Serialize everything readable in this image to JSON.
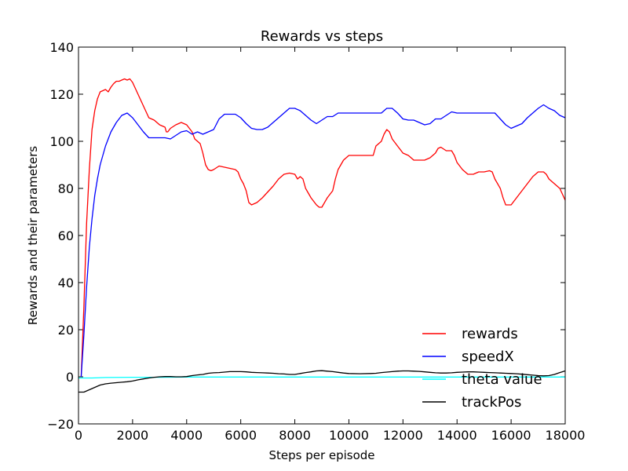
{
  "chart_data": {
    "type": "line",
    "title": "Rewards vs steps",
    "xlabel": "Steps per episode",
    "ylabel": "Rewards and their parameters",
    "xlim": [
      0,
      18000
    ],
    "ylim": [
      -20,
      140
    ],
    "xticks": [
      0,
      2000,
      4000,
      6000,
      8000,
      10000,
      12000,
      14000,
      16000,
      18000
    ],
    "yticks": [
      -20,
      0,
      20,
      40,
      60,
      80,
      100,
      120,
      140
    ],
    "grid": false,
    "legend_position": "lower-right",
    "series": [
      {
        "name": "rewards",
        "color": "#ff0000",
        "x": [
          100,
          200,
          300,
          400,
          500,
          600,
          700,
          800,
          900,
          1000,
          1100,
          1200,
          1300,
          1400,
          1500,
          1600,
          1700,
          1800,
          1900,
          2000,
          2200,
          2400,
          2600,
          2800,
          3000,
          3200,
          3250,
          3300,
          3400,
          3600,
          3800,
          4000,
          4200,
          4300,
          4400,
          4500,
          4600,
          4700,
          4800,
          4900,
          5000,
          5200,
          5400,
          5600,
          5800,
          5900,
          6000,
          6100,
          6200,
          6300,
          6400,
          6600,
          6800,
          7000,
          7200,
          7400,
          7600,
          7800,
          8000,
          8100,
          8200,
          8300,
          8400,
          8600,
          8800,
          8900,
          9000,
          9200,
          9400,
          9500,
          9600,
          9800,
          10000,
          10200,
          10400,
          10600,
          10800,
          10900,
          11000,
          11200,
          11300,
          11400,
          11500,
          11600,
          11800,
          12000,
          12200,
          12300,
          12400,
          12600,
          12800,
          13000,
          13200,
          13300,
          13400,
          13600,
          13800,
          13900,
          14000,
          14200,
          14400,
          14600,
          14800,
          15000,
          15200,
          15300,
          15400,
          15600,
          15700,
          15800,
          16000,
          16200,
          16400,
          16600,
          16800,
          17000,
          17100,
          17200,
          17300,
          17400,
          17600,
          17800,
          18000
        ],
        "y": [
          0,
          30,
          65,
          88,
          105,
          113,
          118,
          121,
          121.5,
          122,
          121,
          123,
          124.5,
          125.5,
          125.5,
          126,
          126.5,
          126,
          126.5,
          125,
          120,
          115,
          110,
          109,
          107,
          106,
          104,
          104,
          105.5,
          107,
          108,
          107,
          104,
          101,
          100,
          99,
          95,
          90,
          88,
          87.5,
          88,
          89.5,
          89,
          88.5,
          88,
          87,
          84,
          82,
          79,
          74,
          73,
          74,
          76,
          78.5,
          81,
          84,
          86,
          86.5,
          86,
          84,
          85,
          84,
          80,
          76,
          73,
          72,
          72,
          76,
          79,
          84,
          88,
          92,
          94,
          94,
          94,
          94,
          94,
          94,
          98,
          100,
          103,
          105,
          104,
          101,
          98,
          95,
          94,
          93,
          92,
          92,
          92,
          93,
          95,
          97,
          97.5,
          96,
          96,
          94,
          91,
          88,
          86,
          86,
          87,
          87,
          87.5,
          87,
          84,
          80,
          76,
          73,
          73,
          76,
          79,
          82,
          85,
          87,
          87,
          87,
          86,
          84,
          82,
          80,
          75
        ]
      },
      {
        "name": "speedX",
        "color": "#0000ff",
        "x": [
          100,
          200,
          300,
          400,
          500,
          600,
          700,
          800,
          1000,
          1200,
          1400,
          1600,
          1800,
          2000,
          2200,
          2400,
          2600,
          2800,
          3000,
          3200,
          3400,
          3600,
          3800,
          4000,
          4200,
          4400,
          4600,
          4800,
          5000,
          5200,
          5400,
          5600,
          5800,
          6000,
          6200,
          6400,
          6600,
          6800,
          7000,
          7200,
          7400,
          7600,
          7800,
          8000,
          8200,
          8400,
          8600,
          8800,
          9000,
          9200,
          9400,
          9600,
          9800,
          10000,
          10200,
          10400,
          10600,
          10800,
          11000,
          11200,
          11400,
          11600,
          11800,
          12000,
          12200,
          12400,
          12600,
          12800,
          13000,
          13200,
          13400,
          13600,
          13800,
          14000,
          14200,
          14400,
          14600,
          14800,
          15000,
          15200,
          15400,
          15600,
          15800,
          16000,
          16200,
          16400,
          16600,
          16800,
          17000,
          17200,
          17400,
          17600,
          17800,
          18000
        ],
        "y": [
          0,
          18,
          38,
          55,
          67,
          77,
          84,
          90,
          98,
          104,
          108,
          111,
          112,
          110,
          107,
          104,
          101.5,
          101.5,
          101.5,
          101.5,
          101,
          102.5,
          104,
          104.5,
          103,
          104,
          103,
          104,
          105,
          109.5,
          111.5,
          111.5,
          111.5,
          110,
          107.5,
          105.5,
          105,
          105,
          106,
          108,
          110,
          112,
          114,
          114,
          113,
          111,
          109,
          107.5,
          109,
          110.5,
          110.5,
          112,
          112,
          112,
          112,
          112,
          112,
          112,
          112,
          112,
          114,
          114,
          112,
          109.5,
          109,
          109,
          108,
          107,
          107.5,
          109.5,
          109.5,
          111,
          112.5,
          112,
          112,
          112,
          112,
          112,
          112,
          112,
          112,
          109.5,
          107,
          105.5,
          106.5,
          107.5,
          110,
          112,
          114,
          115.5,
          114,
          113,
          111,
          110
        ]
      },
      {
        "name": "theta value",
        "color": "#00ffff",
        "x": [
          0,
          500,
          1000,
          2000,
          3000,
          4000,
          6000,
          8000,
          10000,
          12000,
          14000,
          16000,
          18000
        ],
        "y": [
          -0.5,
          -0.5,
          -0.3,
          -0.2,
          -0.2,
          -0.1,
          -0.1,
          -0.1,
          -0.1,
          -0.1,
          -0.1,
          -0.1,
          -0.1
        ]
      },
      {
        "name": "trackPos",
        "color": "#000000",
        "x": [
          0,
          200,
          400,
          600,
          800,
          1000,
          1200,
          1400,
          1600,
          1800,
          2000,
          2200,
          2400,
          2600,
          2800,
          3000,
          3200,
          3400,
          3600,
          3800,
          4000,
          4200,
          4400,
          4600,
          4800,
          5000,
          5200,
          5400,
          5600,
          5800,
          6000,
          6200,
          6400,
          6600,
          6800,
          7000,
          7200,
          7400,
          7600,
          7800,
          8000,
          8200,
          8400,
          8600,
          8800,
          9000,
          9200,
          9400,
          9600,
          9800,
          10000,
          10400,
          10800,
          11000,
          11200,
          11400,
          11600,
          11800,
          12000,
          12200,
          12400,
          12600,
          12800,
          13000,
          13200,
          13400,
          13600,
          13800,
          14000,
          14200,
          14400,
          14600,
          14800,
          15000,
          15200,
          15400,
          15600,
          15800,
          16000,
          16200,
          16400,
          16600,
          16800,
          17000,
          17200,
          17400,
          17600,
          17800,
          18000
        ],
        "y": [
          -6.5,
          -6.5,
          -5.5,
          -4.5,
          -3.5,
          -3,
          -2.7,
          -2.5,
          -2.3,
          -2.1,
          -1.8,
          -1.3,
          -0.9,
          -0.5,
          -0.2,
          0,
          0.1,
          0.1,
          0,
          0,
          0.1,
          0.5,
          0.8,
          1,
          1.5,
          1.7,
          1.8,
          2,
          2.2,
          2.2,
          2.2,
          2.1,
          1.9,
          1.8,
          1.7,
          1.6,
          1.5,
          1.3,
          1.2,
          1,
          1,
          1.4,
          1.8,
          2.1,
          2.5,
          2.6,
          2.4,
          2.2,
          1.9,
          1.6,
          1.4,
          1.3,
          1.4,
          1.5,
          1.8,
          2,
          2.2,
          2.4,
          2.5,
          2.5,
          2.4,
          2.3,
          2.1,
          1.9,
          1.7,
          1.6,
          1.6,
          1.7,
          1.9,
          2,
          2.1,
          2.1,
          2,
          1.9,
          1.8,
          1.7,
          1.6,
          1.5,
          1.4,
          1.3,
          1.1,
          0.9,
          0.7,
          0.5,
          0.4,
          0.5,
          1,
          1.8,
          2.5
        ]
      }
    ]
  }
}
